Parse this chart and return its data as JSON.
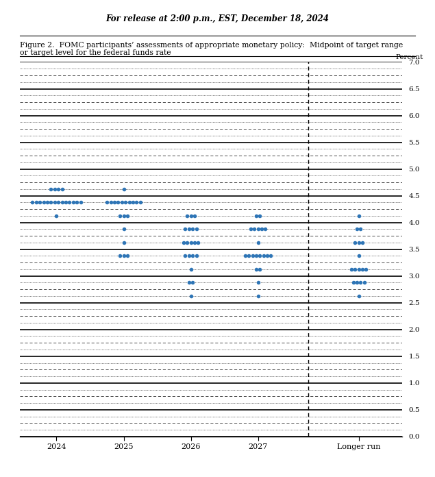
{
  "header": "For release at 2:00 p.m., EST, December 18, 2024",
  "figure_caption_line1": "Figure 2.  FOMC participants’ assessments of appropriate monetary policy:  Midpoint of target range",
  "figure_caption_line2": "or target level for the federal funds rate",
  "ylabel": "Percent",
  "ylim": [
    0.0,
    7.0
  ],
  "yticks": [
    0.0,
    0.5,
    1.0,
    1.5,
    2.0,
    2.5,
    3.0,
    3.5,
    4.0,
    4.5,
    5.0,
    5.5,
    6.0,
    6.5,
    7.0
  ],
  "columns": [
    "2024",
    "2025",
    "2026",
    "2027",
    "Longer run"
  ],
  "col_positions": [
    0,
    1,
    2,
    3,
    4.5
  ],
  "dashed_line_x": 3.75,
  "dot_color": "#2E75B6",
  "dots": {
    "2024": [
      {
        "value": 4.625,
        "count": 4
      },
      {
        "value": 4.375,
        "count": 14
      },
      {
        "value": 4.125,
        "count": 1
      }
    ],
    "2025": [
      {
        "value": 4.625,
        "count": 1
      },
      {
        "value": 4.375,
        "count": 10
      },
      {
        "value": 4.125,
        "count": 3
      },
      {
        "value": 3.875,
        "count": 1
      },
      {
        "value": 3.625,
        "count": 1
      },
      {
        "value": 3.375,
        "count": 3
      }
    ],
    "2026": [
      {
        "value": 4.125,
        "count": 3
      },
      {
        "value": 3.875,
        "count": 4
      },
      {
        "value": 3.625,
        "count": 5
      },
      {
        "value": 3.375,
        "count": 4
      },
      {
        "value": 3.125,
        "count": 1
      },
      {
        "value": 2.875,
        "count": 2
      },
      {
        "value": 2.625,
        "count": 1
      }
    ],
    "2027": [
      {
        "value": 4.125,
        "count": 2
      },
      {
        "value": 3.875,
        "count": 5
      },
      {
        "value": 3.625,
        "count": 1
      },
      {
        "value": 3.375,
        "count": 8
      },
      {
        "value": 3.125,
        "count": 2
      },
      {
        "value": 2.875,
        "count": 1
      },
      {
        "value": 2.625,
        "count": 1
      }
    ],
    "Longer run": [
      {
        "value": 4.125,
        "count": 1
      },
      {
        "value": 3.875,
        "count": 2
      },
      {
        "value": 3.625,
        "count": 3
      },
      {
        "value": 3.375,
        "count": 1
      },
      {
        "value": 3.125,
        "count": 5
      },
      {
        "value": 2.875,
        "count": 4
      },
      {
        "value": 2.625,
        "count": 1
      }
    ]
  }
}
